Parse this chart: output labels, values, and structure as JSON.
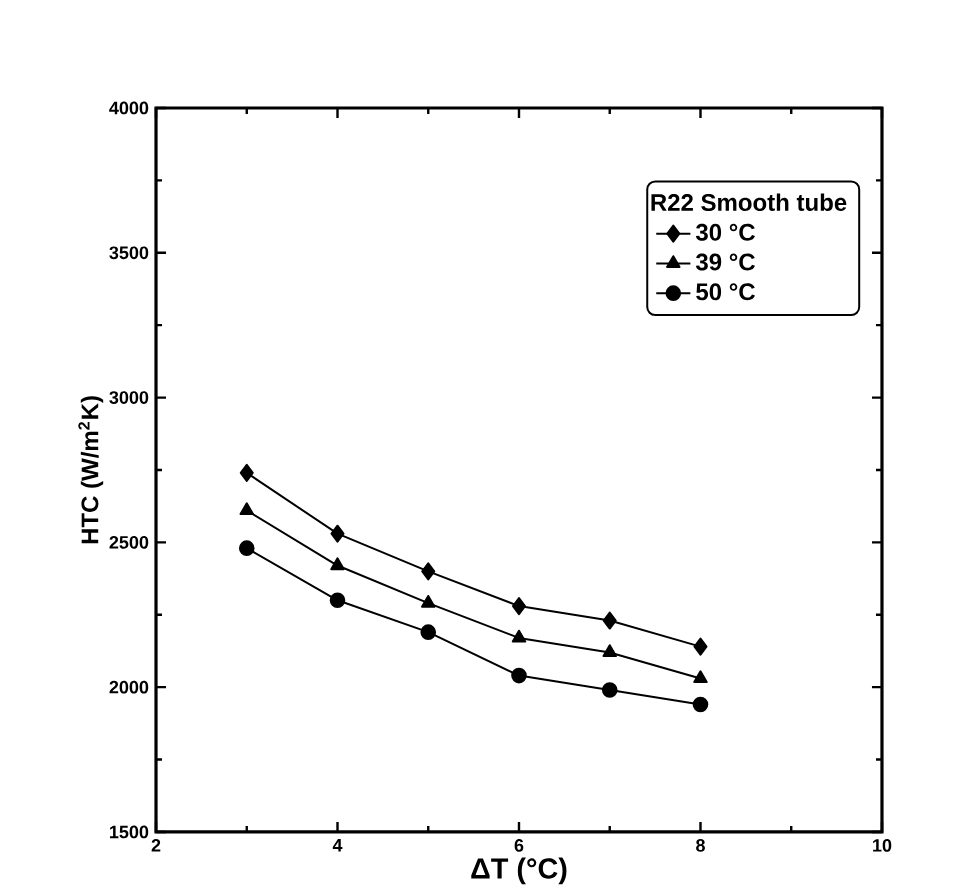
{
  "chart_data": {
    "type": "line",
    "xlabel": "ΔT (°C)",
    "ylabel": "HTC (W/m$^{2}$K)",
    "legend_title": "R22 Smooth tube",
    "legend": "top right",
    "x": [
      3,
      4,
      5,
      6,
      7,
      8
    ],
    "series": [
      {
        "name": "30 °C",
        "color": "#000000",
        "marker": "diamond",
        "values": [
          2740,
          2530,
          2400,
          2280,
          2230,
          2140
        ]
      },
      {
        "name": "39 °C",
        "color": "#000000",
        "marker": "triangle",
        "values": [
          2610,
          2420,
          2290,
          2170,
          2120,
          2030
        ]
      },
      {
        "name": "50 °C",
        "color": "#000000",
        "marker": "circle",
        "values": [
          2480,
          2300,
          2190,
          2040,
          1990,
          1940
        ]
      }
    ],
    "xlim": [
      2,
      10
    ],
    "xticks": [
      2,
      4,
      6,
      8,
      10
    ],
    "ylim": [
      1500,
      4000
    ],
    "yticks": [
      1500,
      2000,
      2500,
      3000,
      3500,
      4000
    ],
    "grid": false
  }
}
